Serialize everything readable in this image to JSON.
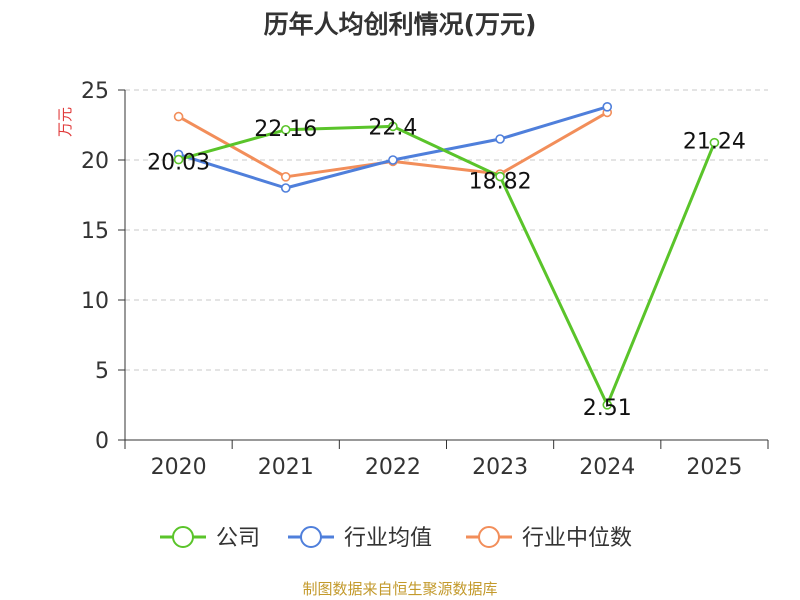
{
  "chart_data": {
    "type": "line",
    "title": "历年人均创利情况(万元)",
    "ylabel": "万元",
    "xlabel": "",
    "categories": [
      "2020",
      "2021",
      "2022",
      "2023",
      "2024",
      "2025"
    ],
    "ylim": [
      0,
      25
    ],
    "yticks": [
      0,
      5,
      10,
      15,
      20,
      25
    ],
    "grid": true,
    "legend_position": "bottom",
    "series": [
      {
        "name": "公司",
        "color": "#5ac42a",
        "values": [
          20.03,
          22.16,
          22.4,
          18.82,
          2.51,
          21.24
        ],
        "show_labels": true
      },
      {
        "name": "行业均值",
        "color": "#4f7fdb",
        "values": [
          20.4,
          18.0,
          20.0,
          21.5,
          23.8,
          null
        ],
        "show_labels": false
      },
      {
        "name": "行业中位数",
        "color": "#f28e5a",
        "values": [
          23.1,
          18.8,
          19.9,
          19.0,
          23.4,
          null
        ],
        "show_labels": false
      }
    ],
    "data_labels": [
      "20.03",
      "22.16",
      "22.4",
      "18.82",
      "2.51",
      "21.24"
    ]
  },
  "footer": {
    "source": "制图数据来自恒生聚源数据库"
  }
}
